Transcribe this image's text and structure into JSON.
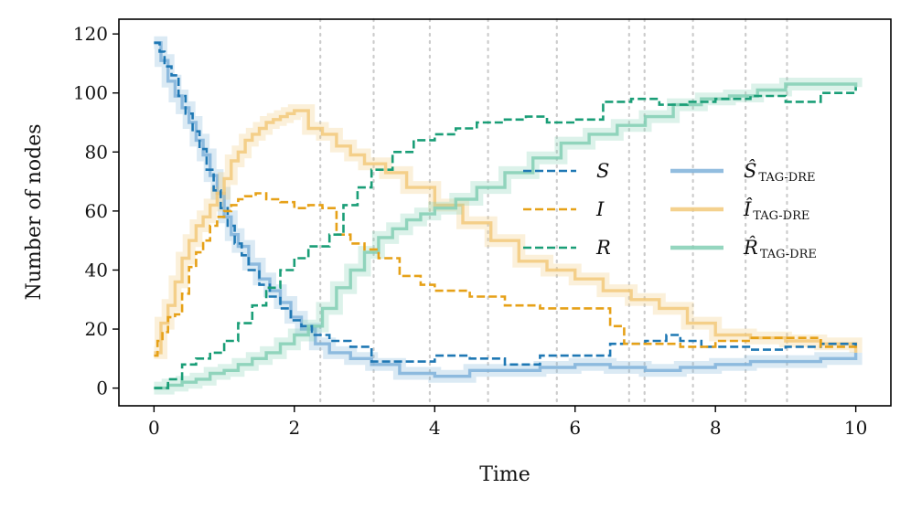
{
  "chart_data": {
    "type": "line",
    "title": "",
    "xlabel": "Time",
    "ylabel": "Number of nodes",
    "xlim": [
      -0.5,
      10.5
    ],
    "ylim": [
      -6,
      125
    ],
    "xticks": [
      0,
      2,
      4,
      6,
      8,
      10
    ],
    "yticks": [
      0,
      20,
      40,
      60,
      80,
      100,
      120
    ],
    "legend": {
      "placement": "center-right",
      "columns": 2
    },
    "vlines": [
      2.37,
      3.13,
      3.93,
      4.76,
      5.74,
      6.77,
      6.99,
      7.68,
      8.43,
      9.02
    ],
    "series": [
      {
        "name": "S",
        "label": "S",
        "color": "#1f78b4",
        "style": "dashed",
        "x": [
          0,
          0.08,
          0.15,
          0.25,
          0.35,
          0.45,
          0.55,
          0.65,
          0.75,
          0.85,
          0.95,
          1.05,
          1.15,
          1.25,
          1.35,
          1.5,
          1.65,
          1.8,
          1.95,
          2.1,
          2.25,
          2.5,
          2.8,
          3.1,
          3.5,
          4.0,
          4.5,
          5.0,
          5.5,
          6.0,
          6.5,
          7.0,
          7.3,
          7.5,
          7.8,
          8.0,
          8.5,
          9.0,
          9.5,
          10.0
        ],
        "y": [
          117,
          114,
          109,
          106,
          99,
          93,
          87,
          81,
          74,
          67,
          61,
          55,
          49,
          45,
          40,
          35,
          31,
          27,
          23,
          21,
          18,
          16,
          14,
          9,
          9,
          11,
          10,
          8,
          11,
          11,
          15,
          16,
          18,
          16,
          14,
          14,
          13,
          14,
          15,
          14
        ]
      },
      {
        "name": "I",
        "label": "I",
        "color": "#e6a118",
        "style": "dashed",
        "x": [
          0,
          0.05,
          0.12,
          0.2,
          0.3,
          0.4,
          0.5,
          0.6,
          0.7,
          0.8,
          0.9,
          1.0,
          1.1,
          1.2,
          1.3,
          1.45,
          1.6,
          1.8,
          2.0,
          2.2,
          2.4,
          2.6,
          2.8,
          3.0,
          3.2,
          3.5,
          3.8,
          4.0,
          4.5,
          5.0,
          5.5,
          6.0,
          6.5,
          6.7,
          7.0,
          7.5,
          8.0,
          8.5,
          9.0,
          9.5,
          10.0
        ],
        "y": [
          11,
          16,
          19,
          24,
          25,
          32,
          41,
          46,
          50,
          55,
          58,
          60,
          62,
          64,
          65,
          66,
          64,
          63,
          61,
          62,
          61,
          52,
          49,
          47,
          44,
          38,
          35,
          33,
          31,
          28,
          27,
          27,
          21,
          15,
          15,
          14,
          16,
          17,
          17,
          14,
          13
        ]
      },
      {
        "name": "R",
        "label": "R",
        "color": "#1a9e77",
        "style": "dashed",
        "x": [
          0,
          0.2,
          0.4,
          0.6,
          0.8,
          1.0,
          1.2,
          1.4,
          1.6,
          1.8,
          2.0,
          2.2,
          2.5,
          2.7,
          2.9,
          3.1,
          3.4,
          3.7,
          4.0,
          4.3,
          4.6,
          5.0,
          5.3,
          5.6,
          6.0,
          6.4,
          6.8,
          7.2,
          7.6,
          8.0,
          8.5,
          9.0,
          9.5,
          10.0
        ],
        "y": [
          0,
          3,
          8,
          10,
          12,
          16,
          22,
          28,
          34,
          40,
          44,
          48,
          52,
          62,
          68,
          74,
          80,
          84,
          86,
          88,
          90,
          91,
          92,
          90,
          91,
          97,
          98,
          96,
          97,
          98,
          99,
          97,
          100,
          102
        ]
      },
      {
        "name": "S_hat",
        "label": "Ŝ",
        "sub": "TAG-DRE",
        "color": "#7fb2d9",
        "style": "solid",
        "x": [
          0,
          0.1,
          0.2,
          0.3,
          0.4,
          0.5,
          0.6,
          0.7,
          0.8,
          0.9,
          1.0,
          1.1,
          1.2,
          1.35,
          1.5,
          1.65,
          1.8,
          1.95,
          2.1,
          2.3,
          2.5,
          2.8,
          3.1,
          3.5,
          4.0,
          4.5,
          5.0,
          5.5,
          6.0,
          6.5,
          7.0,
          7.5,
          8.0,
          8.5,
          9.0,
          9.5,
          10.0
        ],
        "y": [
          117,
          111,
          104,
          99,
          95,
          90,
          84,
          79,
          72,
          66,
          58,
          52,
          48,
          42,
          37,
          33,
          29,
          24,
          20,
          15,
          12,
          10,
          8,
          5,
          4,
          6,
          6,
          7,
          8,
          7,
          6,
          7,
          8,
          9,
          9,
          10,
          12
        ]
      },
      {
        "name": "I_hat",
        "label": "Î",
        "sub": "TAG-DRE",
        "color": "#f2c97a",
        "style": "solid",
        "x": [
          0,
          0.1,
          0.2,
          0.3,
          0.4,
          0.5,
          0.6,
          0.7,
          0.8,
          0.9,
          1.0,
          1.1,
          1.2,
          1.3,
          1.4,
          1.5,
          1.6,
          1.7,
          1.8,
          1.9,
          2.0,
          2.2,
          2.4,
          2.6,
          2.8,
          3.0,
          3.3,
          3.6,
          4.0,
          4.4,
          4.8,
          5.2,
          5.6,
          6.0,
          6.4,
          6.8,
          7.2,
          7.6,
          8.0,
          8.5,
          9.0,
          9.5,
          10.0
        ],
        "y": [
          12,
          22,
          28,
          36,
          44,
          50,
          55,
          58,
          62,
          66,
          71,
          77,
          80,
          84,
          86,
          88,
          90,
          91,
          92,
          93,
          94,
          88,
          86,
          82,
          79,
          76,
          73,
          68,
          62,
          56,
          50,
          43,
          40,
          37,
          33,
          30,
          27,
          22,
          18,
          17,
          16,
          15,
          12
        ]
      },
      {
        "name": "R_hat",
        "label": "R̂",
        "sub": "TAG-DRE",
        "color": "#82cfb4",
        "style": "solid",
        "x": [
          0,
          0.2,
          0.4,
          0.6,
          0.8,
          1.0,
          1.2,
          1.4,
          1.6,
          1.8,
          2.0,
          2.2,
          2.4,
          2.6,
          2.8,
          3.0,
          3.2,
          3.4,
          3.6,
          3.8,
          4.0,
          4.3,
          4.6,
          5.0,
          5.4,
          5.8,
          6.2,
          6.6,
          7.0,
          7.4,
          7.8,
          8.2,
          8.6,
          9.0,
          9.5,
          10.0
        ],
        "y": [
          0,
          1,
          2,
          3,
          5,
          6,
          8,
          10,
          12,
          15,
          18,
          21,
          27,
          34,
          40,
          46,
          51,
          54,
          57,
          59,
          61,
          64,
          68,
          73,
          78,
          83,
          86,
          89,
          92,
          96,
          98,
          99,
          101,
          103,
          103,
          102
        ]
      }
    ]
  }
}
